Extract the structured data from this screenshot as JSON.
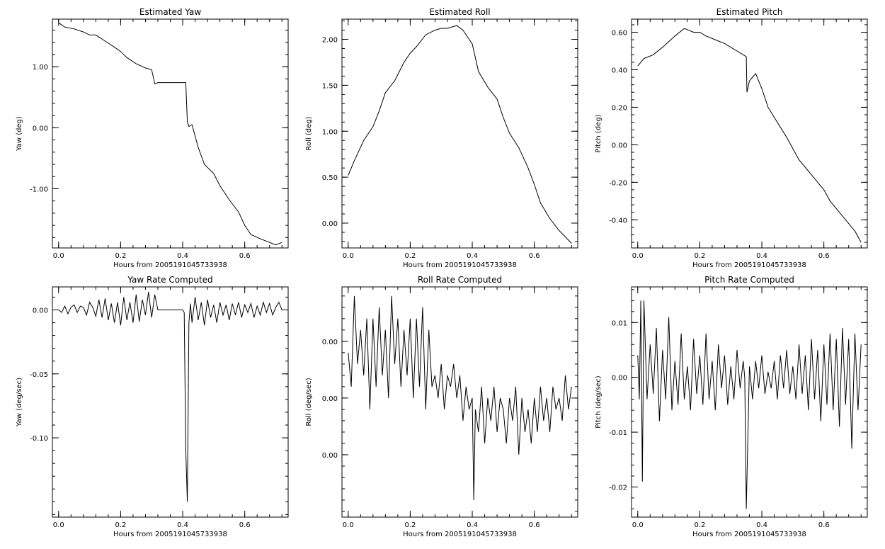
{
  "chart_data": [
    {
      "type": "line",
      "title": "Estimated Yaw",
      "xlabel": "Hours from 2005191045733938",
      "ylabel": "Yaw (deg)",
      "xlim": [
        -0.02,
        0.74
      ],
      "ylim": [
        -1.97,
        1.78
      ],
      "x_ticks": [
        "0.0",
        "0.2",
        "0.4",
        "0.6"
      ],
      "y_ticks": [
        "1.00",
        "0.00",
        "-1.00"
      ],
      "y_tick_values": [
        1.0,
        0.0,
        -1.0
      ],
      "grid": false,
      "series": [
        {
          "x": [
            0.0,
            0.02,
            0.05,
            0.08,
            0.1,
            0.12,
            0.15,
            0.18,
            0.2,
            0.22,
            0.25,
            0.28,
            0.3,
            0.31,
            0.32,
            0.35,
            0.38,
            0.4,
            0.41,
            0.415,
            0.42,
            0.43,
            0.45,
            0.47,
            0.5,
            0.52,
            0.55,
            0.58,
            0.6,
            0.62,
            0.65,
            0.68,
            0.7,
            0.72
          ],
          "y": [
            1.72,
            1.65,
            1.62,
            1.57,
            1.52,
            1.52,
            1.42,
            1.32,
            1.25,
            1.15,
            1.05,
            0.98,
            0.95,
            0.72,
            0.74,
            0.74,
            0.74,
            0.74,
            0.74,
            0.1,
            0.02,
            0.05,
            -0.32,
            -0.6,
            -0.75,
            -0.95,
            -1.18,
            -1.38,
            -1.6,
            -1.75,
            -1.82,
            -1.88,
            -1.92,
            -1.88
          ]
        }
      ]
    },
    {
      "type": "line",
      "title": "Estimated Roll",
      "xlabel": "Hours from 2005191045733938",
      "ylabel": "Roll (deg)",
      "xlim": [
        -0.02,
        0.74
      ],
      "ylim": [
        -0.27,
        2.22
      ],
      "x_ticks": [
        "0.0",
        "0.2",
        "0.4",
        "0.6"
      ],
      "y_ticks": [
        "2.00",
        "1.50",
        "1.00",
        "0.50",
        "0.00"
      ],
      "y_tick_values": [
        2.0,
        1.5,
        1.0,
        0.5,
        0.0
      ],
      "grid": false,
      "series": [
        {
          "x": [
            0.0,
            0.02,
            0.05,
            0.08,
            0.1,
            0.12,
            0.15,
            0.18,
            0.2,
            0.22,
            0.25,
            0.28,
            0.3,
            0.32,
            0.35,
            0.37,
            0.4,
            0.42,
            0.45,
            0.48,
            0.5,
            0.52,
            0.55,
            0.58,
            0.6,
            0.62,
            0.65,
            0.68,
            0.7,
            0.72
          ],
          "y": [
            0.52,
            0.68,
            0.9,
            1.05,
            1.22,
            1.42,
            1.55,
            1.75,
            1.85,
            1.92,
            2.05,
            2.1,
            2.12,
            2.12,
            2.15,
            2.1,
            1.95,
            1.65,
            1.48,
            1.35,
            1.15,
            0.98,
            0.82,
            0.6,
            0.42,
            0.22,
            0.05,
            -0.08,
            -0.15,
            -0.22
          ]
        }
      ]
    },
    {
      "type": "line",
      "title": "Estimated Pitch",
      "xlabel": "Hours from 2005191045733938",
      "ylabel": "Pitch (deg)",
      "xlim": [
        -0.02,
        0.74
      ],
      "ylim": [
        -0.55,
        0.67
      ],
      "x_ticks": [
        "0.0",
        "0.2",
        "0.4",
        "0.6"
      ],
      "y_ticks": [
        "0.60",
        "0.40",
        "0.20",
        "0.00",
        "-0.20",
        "-0.40"
      ],
      "y_tick_values": [
        0.6,
        0.4,
        0.2,
        0.0,
        -0.2,
        -0.4
      ],
      "grid": false,
      "series": [
        {
          "x": [
            0.0,
            0.02,
            0.05,
            0.08,
            0.1,
            0.12,
            0.15,
            0.18,
            0.2,
            0.22,
            0.25,
            0.28,
            0.3,
            0.32,
            0.34,
            0.35,
            0.352,
            0.36,
            0.38,
            0.4,
            0.42,
            0.45,
            0.48,
            0.5,
            0.52,
            0.55,
            0.58,
            0.6,
            0.62,
            0.65,
            0.68,
            0.7,
            0.72
          ],
          "y": [
            0.42,
            0.46,
            0.48,
            0.52,
            0.55,
            0.58,
            0.62,
            0.6,
            0.6,
            0.58,
            0.56,
            0.54,
            0.52,
            0.5,
            0.48,
            0.47,
            0.28,
            0.34,
            0.38,
            0.3,
            0.2,
            0.12,
            0.04,
            -0.02,
            -0.08,
            -0.14,
            -0.2,
            -0.24,
            -0.3,
            -0.36,
            -0.42,
            -0.46,
            -0.52
          ]
        }
      ]
    },
    {
      "type": "line",
      "title": "Yaw Rate Computed",
      "xlabel": "Hours from 2005191045733938",
      "ylabel": "Yaw (deg/sec)",
      "xlim": [
        -0.02,
        0.74
      ],
      "ylim": [
        -0.162,
        0.018
      ],
      "x_ticks": [
        "0.0",
        "0.2",
        "0.4",
        "0.6"
      ],
      "y_ticks": [
        "0.00",
        "-0.05",
        "-0.10"
      ],
      "y_tick_values": [
        0.0,
        -0.05,
        -0.1
      ],
      "grid": false,
      "series": [
        {
          "x": [
            0.0,
            0.01,
            0.02,
            0.03,
            0.04,
            0.05,
            0.06,
            0.07,
            0.08,
            0.09,
            0.1,
            0.11,
            0.12,
            0.13,
            0.14,
            0.15,
            0.16,
            0.17,
            0.18,
            0.19,
            0.2,
            0.21,
            0.22,
            0.23,
            0.24,
            0.25,
            0.26,
            0.27,
            0.28,
            0.29,
            0.3,
            0.31,
            0.32,
            0.4,
            0.405,
            0.41,
            0.415,
            0.42,
            0.425,
            0.43,
            0.44,
            0.45,
            0.46,
            0.47,
            0.48,
            0.49,
            0.5,
            0.51,
            0.52,
            0.53,
            0.54,
            0.55,
            0.56,
            0.57,
            0.58,
            0.59,
            0.6,
            0.61,
            0.62,
            0.63,
            0.64,
            0.65,
            0.66,
            0.67,
            0.68,
            0.69,
            0.7,
            0.71,
            0.72
          ],
          "y": [
            0.0,
            -0.002,
            0.003,
            -0.003,
            0.002,
            0.004,
            -0.002,
            0.003,
            0.002,
            -0.004,
            0.006,
            0.002,
            -0.005,
            0.008,
            -0.006,
            0.009,
            -0.008,
            0.005,
            -0.01,
            0.006,
            -0.012,
            0.01,
            -0.008,
            0.006,
            -0.01,
            0.012,
            -0.009,
            0.008,
            -0.004,
            0.014,
            -0.006,
            0.012,
            0.0,
            0.0,
            -0.002,
            -0.11,
            -0.15,
            -0.01,
            0.005,
            -0.01,
            0.01,
            -0.008,
            0.006,
            -0.012,
            0.008,
            -0.006,
            0.004,
            -0.01,
            0.006,
            -0.004,
            0.004,
            -0.008,
            0.005,
            -0.004,
            0.006,
            -0.006,
            0.004,
            -0.002,
            0.005,
            -0.006,
            0.003,
            -0.004,
            0.006,
            -0.002,
            0.005,
            -0.004,
            0.002,
            0.006,
            0.0
          ]
        }
      ]
    },
    {
      "type": "line",
      "title": "Roll Rate Computed",
      "xlabel": "Hours from 2005191045733938",
      "ylabel": "Roll (deg/sec)",
      "xlim": [
        -0.02,
        0.74
      ],
      "ylim": [
        -0.0155,
        0.0048
      ],
      "x_ticks": [
        "0.0",
        "0.2",
        "0.4",
        "0.6"
      ],
      "y_ticks": [
        "0.00",
        "0.00",
        "0.00"
      ],
      "y_tick_values": [
        0.0,
        -0.005,
        -0.01
      ],
      "grid": false,
      "series": [
        {
          "x": [
            0.0,
            0.01,
            0.02,
            0.03,
            0.04,
            0.05,
            0.06,
            0.07,
            0.08,
            0.09,
            0.1,
            0.11,
            0.12,
            0.13,
            0.14,
            0.15,
            0.16,
            0.17,
            0.18,
            0.19,
            0.2,
            0.21,
            0.22,
            0.23,
            0.24,
            0.25,
            0.26,
            0.27,
            0.28,
            0.29,
            0.3,
            0.31,
            0.32,
            0.33,
            0.34,
            0.35,
            0.36,
            0.37,
            0.38,
            0.39,
            0.4,
            0.405,
            0.41,
            0.42,
            0.43,
            0.44,
            0.45,
            0.46,
            0.47,
            0.48,
            0.49,
            0.5,
            0.51,
            0.52,
            0.53,
            0.54,
            0.55,
            0.56,
            0.57,
            0.58,
            0.59,
            0.6,
            0.61,
            0.62,
            0.63,
            0.64,
            0.65,
            0.66,
            0.67,
            0.68,
            0.69,
            0.7,
            0.71,
            0.72
          ],
          "y": [
            -0.001,
            -0.004,
            0.004,
            -0.002,
            0.001,
            -0.003,
            0.002,
            -0.006,
            0.002,
            -0.004,
            0.003,
            -0.003,
            0.001,
            -0.005,
            0.004,
            -0.002,
            0.002,
            -0.004,
            0.001,
            -0.003,
            0.002,
            -0.005,
            0.002,
            -0.004,
            0.003,
            -0.006,
            0.001,
            -0.004,
            -0.003,
            -0.005,
            -0.002,
            -0.006,
            -0.003,
            -0.004,
            -0.002,
            -0.005,
            -0.003,
            -0.007,
            -0.004,
            -0.006,
            -0.005,
            -0.014,
            -0.006,
            -0.008,
            -0.004,
            -0.009,
            -0.005,
            -0.007,
            -0.004,
            -0.008,
            -0.005,
            -0.006,
            -0.009,
            -0.005,
            -0.007,
            -0.004,
            -0.01,
            -0.005,
            -0.008,
            -0.006,
            -0.009,
            -0.005,
            -0.008,
            -0.004,
            -0.007,
            -0.005,
            -0.008,
            -0.004,
            -0.006,
            -0.005,
            -0.007,
            -0.003,
            -0.006,
            -0.004
          ]
        }
      ]
    },
    {
      "type": "line",
      "title": "Pitch Rate Computed",
      "xlabel": "Hours from 2005191045733938",
      "ylabel": "Pitch (deg/sec)",
      "xlim": [
        -0.02,
        0.74
      ],
      "ylim": [
        -0.0255,
        0.0165
      ],
      "x_ticks": [
        "0.0",
        "0.2",
        "0.4",
        "0.6"
      ],
      "y_ticks": [
        "0.01",
        "0.00",
        "-0.01",
        "-0.02"
      ],
      "y_tick_values": [
        0.01,
        0.0,
        -0.01,
        -0.02
      ],
      "grid": false,
      "series": [
        {
          "x": [
            0.0,
            0.005,
            0.01,
            0.015,
            0.02,
            0.03,
            0.04,
            0.05,
            0.06,
            0.07,
            0.08,
            0.09,
            0.1,
            0.11,
            0.12,
            0.13,
            0.14,
            0.15,
            0.16,
            0.17,
            0.18,
            0.19,
            0.2,
            0.21,
            0.22,
            0.23,
            0.24,
            0.25,
            0.26,
            0.27,
            0.28,
            0.29,
            0.3,
            0.31,
            0.32,
            0.33,
            0.34,
            0.345,
            0.35,
            0.36,
            0.37,
            0.38,
            0.39,
            0.4,
            0.41,
            0.42,
            0.43,
            0.44,
            0.45,
            0.46,
            0.47,
            0.48,
            0.49,
            0.5,
            0.51,
            0.52,
            0.53,
            0.54,
            0.55,
            0.56,
            0.57,
            0.58,
            0.59,
            0.6,
            0.61,
            0.62,
            0.63,
            0.64,
            0.65,
            0.66,
            0.67,
            0.68,
            0.69,
            0.7,
            0.71,
            0.72
          ],
          "y": [
            0.004,
            -0.004,
            0.014,
            -0.019,
            0.014,
            -0.004,
            0.006,
            -0.003,
            0.009,
            -0.008,
            0.005,
            -0.004,
            0.011,
            -0.006,
            0.003,
            -0.005,
            0.008,
            -0.004,
            0.002,
            -0.006,
            0.007,
            -0.003,
            0.004,
            -0.005,
            0.008,
            -0.004,
            0.003,
            -0.006,
            0.006,
            -0.002,
            0.004,
            -0.005,
            0.002,
            -0.004,
            0.005,
            -0.002,
            0.003,
            0.0,
            -0.024,
            0.002,
            -0.004,
            0.003,
            -0.002,
            0.004,
            -0.003,
            0.001,
            -0.002,
            0.003,
            -0.004,
            0.004,
            -0.002,
            0.005,
            -0.003,
            0.002,
            -0.004,
            0.006,
            -0.003,
            0.004,
            -0.006,
            0.007,
            -0.004,
            0.005,
            -0.008,
            0.006,
            -0.005,
            0.008,
            -0.006,
            0.007,
            -0.009,
            0.009,
            -0.005,
            0.007,
            -0.013,
            0.008,
            -0.006,
            0.006
          ]
        }
      ]
    }
  ]
}
